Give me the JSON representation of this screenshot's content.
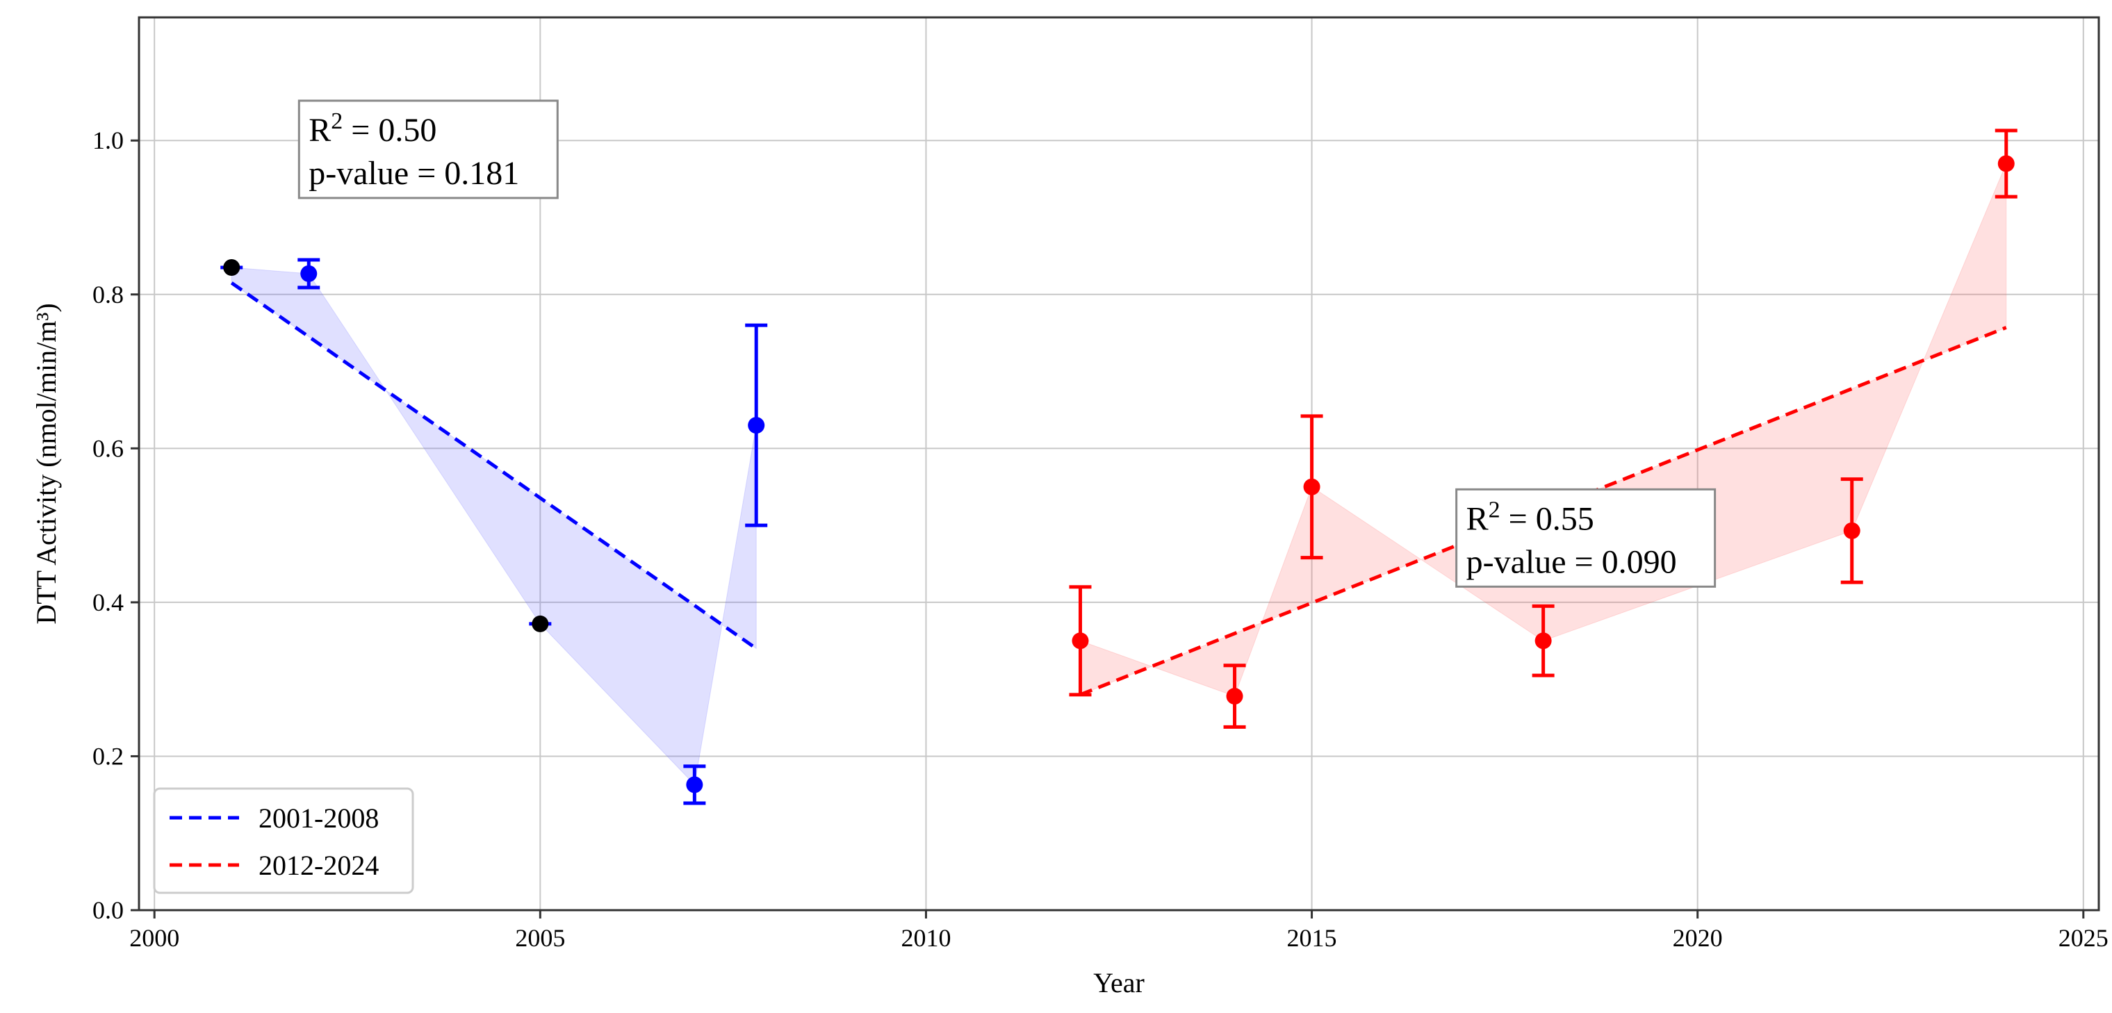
{
  "chart_data": {
    "type": "scatter",
    "xlabel": "Year",
    "ylabel": "DTT Activity (nmol/min/m³)",
    "xlim": [
      1999.8,
      2025.2
    ],
    "ylim": [
      0.0,
      1.16
    ],
    "xticks": [
      2000,
      2005,
      2010,
      2015,
      2020,
      2025
    ],
    "yticks": [
      0.0,
      0.2,
      0.4,
      0.6,
      0.8,
      1.0
    ],
    "xtick_labels": [
      "2000",
      "2005",
      "2010",
      "2015",
      "2020",
      "2025"
    ],
    "ytick_labels": [
      "0.0",
      "0.2",
      "0.4",
      "0.6",
      "0.8",
      "1.0"
    ],
    "grid": true,
    "legend_position": "bottom-left",
    "series": [
      {
        "name": "2001-2008",
        "color": "#0000ff",
        "points": [
          {
            "x": 2001,
            "y": 0.835,
            "err": 0.0,
            "marker_color": "#000000"
          },
          {
            "x": 2002,
            "y": 0.827,
            "err": 0.018,
            "marker_color": "#0000ff"
          },
          {
            "x": 2005,
            "y": 0.372,
            "err": 0.0,
            "marker_color": "#000000"
          },
          {
            "x": 2007,
            "y": 0.163,
            "err": 0.024,
            "marker_color": "#0000ff"
          },
          {
            "x": 2007.8,
            "y": 0.63,
            "err": 0.13,
            "marker_color": "#0000ff"
          }
        ],
        "trend": {
          "x": [
            2001,
            2007.8
          ],
          "y": [
            0.815,
            0.34
          ]
        },
        "band_fill": "rgba(100,100,255,0.2)"
      },
      {
        "name": "2012-2024",
        "color": "#ff0000",
        "points": [
          {
            "x": 2012,
            "y": 0.35,
            "err": 0.07,
            "marker_color": "#ff0000"
          },
          {
            "x": 2014,
            "y": 0.278,
            "err": 0.04,
            "marker_color": "#ff0000"
          },
          {
            "x": 2015,
            "y": 0.55,
            "err": 0.092,
            "marker_color": "#ff0000"
          },
          {
            "x": 2018,
            "y": 0.35,
            "err": 0.045,
            "marker_color": "#ff0000"
          },
          {
            "x": 2022,
            "y": 0.493,
            "err": 0.067,
            "marker_color": "#ff0000"
          },
          {
            "x": 2024,
            "y": 0.97,
            "err": 0.043,
            "marker_color": "#ff0000"
          }
        ],
        "trend": {
          "x": [
            2012,
            2024
          ],
          "y": [
            0.28,
            0.757
          ]
        },
        "band_fill": "rgba(255,100,100,0.2)"
      }
    ],
    "annotations": [
      {
        "r2_label": "R",
        "r2_sup": "2",
        "r2_value": " = 0.50",
        "p_text": "p-value = 0.181",
        "x": 2003.0,
        "y": 0.975
      },
      {
        "r2_label": "R",
        "r2_sup": "2",
        "r2_value": " = 0.55",
        "p_text": "p-value = 0.090",
        "x": 2018.0,
        "y": 0.47
      }
    ]
  }
}
